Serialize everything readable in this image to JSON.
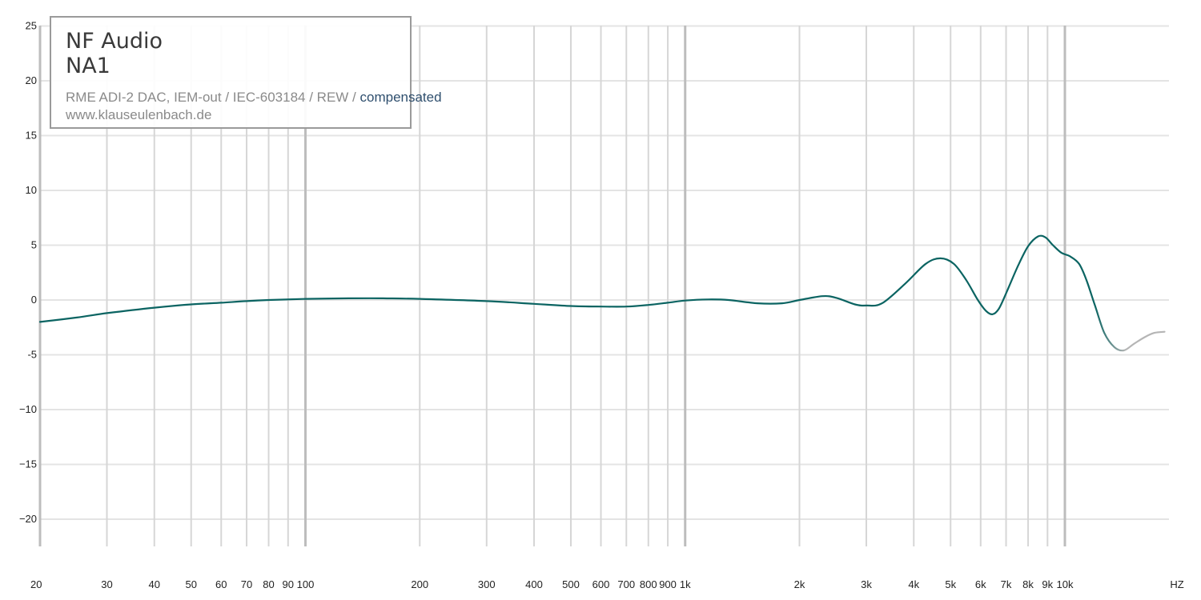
{
  "legend": {
    "brand": "NF Audio",
    "model": "NA1",
    "meta_prefix": "RME ADI-2 DAC, IEM-out / IEC-603184 / REW / ",
    "meta_highlight": "compensated",
    "site": "www.klauseulenbach.de"
  },
  "colors": {
    "curve": "#0b6462",
    "curve_faded": "#b5b5b5",
    "grid_minor": "#e4e4e4",
    "grid_major": "#bdbdbd"
  },
  "chart_data": {
    "type": "line",
    "title": "",
    "xlabel": "",
    "ylabel": "",
    "x_scale": "log",
    "xlim": [
      20,
      30000
    ],
    "ylim": [
      -22,
      25
    ],
    "grid": true,
    "y_ticks": [
      {
        "v": 25,
        "label": "25"
      },
      {
        "v": 20,
        "label": "20"
      },
      {
        "v": 15,
        "label": "15"
      },
      {
        "v": 10,
        "label": "10"
      },
      {
        "v": 5,
        "label": "5"
      },
      {
        "v": 0,
        "label": "0"
      },
      {
        "v": -5,
        "label": "-5"
      },
      {
        "v": -10,
        "label": "−10"
      },
      {
        "v": -15,
        "label": "−15"
      },
      {
        "v": -20,
        "label": "−20"
      }
    ],
    "x_ticks": [
      {
        "v": 20,
        "label": "20"
      },
      {
        "v": 30,
        "label": "30"
      },
      {
        "v": 40,
        "label": "40"
      },
      {
        "v": 50,
        "label": "50"
      },
      {
        "v": 60,
        "label": "60"
      },
      {
        "v": 70,
        "label": "70"
      },
      {
        "v": 80,
        "label": "80"
      },
      {
        "v": 90,
        "label": "90"
      },
      {
        "v": 100,
        "label": "100"
      },
      {
        "v": 200,
        "label": "200"
      },
      {
        "v": 300,
        "label": "300"
      },
      {
        "v": 400,
        "label": "400"
      },
      {
        "v": 500,
        "label": "500"
      },
      {
        "v": 600,
        "label": "600"
      },
      {
        "v": 700,
        "label": "700"
      },
      {
        "v": 800,
        "label": "800"
      },
      {
        "v": 900,
        "label": "900"
      },
      {
        "v": 1000,
        "label": "1k"
      },
      {
        "v": 2000,
        "label": "2k"
      },
      {
        "v": 3000,
        "label": "3k"
      },
      {
        "v": 4000,
        "label": "4k"
      },
      {
        "v": 5000,
        "label": "5k"
      },
      {
        "v": 6000,
        "label": "6k"
      },
      {
        "v": 7000,
        "label": "7k"
      },
      {
        "v": 8000,
        "label": "8k"
      },
      {
        "v": 9000,
        "label": "9k"
      },
      {
        "v": 10000,
        "label": "10k"
      }
    ],
    "x_unit_label": "HZ",
    "series": [
      {
        "x": [
          20,
          25,
          30,
          40,
          50,
          60,
          70,
          80,
          100,
          130,
          160,
          200,
          300,
          400,
          500,
          600,
          700,
          800,
          900,
          1000,
          1150,
          1300,
          1550,
          1800,
          2000,
          2300,
          2500,
          2800,
          3000,
          3300,
          3800,
          4300,
          4700,
          5100,
          5500,
          5900,
          6200,
          6450,
          6700,
          7000,
          7500,
          8000,
          8500,
          8900,
          9300,
          9800,
          10300,
          10900,
          11400,
          12000,
          12700,
          13500,
          14300,
          15200,
          16200,
          17200,
          18300
        ],
        "y": [
          -2.0,
          -1.6,
          -1.2,
          -0.7,
          -0.4,
          -0.25,
          -0.1,
          0.0,
          0.1,
          0.15,
          0.15,
          0.1,
          -0.1,
          -0.35,
          -0.55,
          -0.6,
          -0.6,
          -0.45,
          -0.25,
          -0.05,
          0.05,
          0.0,
          -0.3,
          -0.3,
          0.0,
          0.35,
          0.2,
          -0.4,
          -0.5,
          -0.3,
          1.5,
          3.3,
          3.8,
          3.3,
          1.8,
          0.0,
          -1.0,
          -1.3,
          -0.8,
          0.6,
          3.0,
          4.9,
          5.8,
          5.7,
          5.0,
          4.3,
          4.0,
          3.3,
          1.8,
          -0.5,
          -3.0,
          -4.3,
          -4.6,
          -4.0,
          -3.4,
          -3.0,
          -2.9
        ]
      }
    ]
  }
}
